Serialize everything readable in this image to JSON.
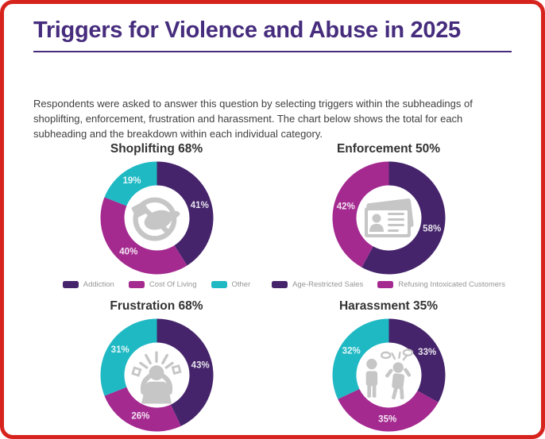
{
  "frame": {
    "border_color": "#d7231e",
    "background": "#ffffff"
  },
  "header": {
    "title": "Triggers for Violence and Abuse in 2025",
    "title_color": "#462c7d"
  },
  "intro": {
    "text": "Respondents were asked to answer this question by selecting triggers within the subheadings of shoplifting, enforcement, frustration and harassment. The chart below shows the total for each subheading and the breakdown within each individual category."
  },
  "palette": {
    "purple": "#45246b",
    "magenta": "#a42a90",
    "teal": "#1fb9c4",
    "segment_label_text": "#ffffff",
    "legend_text": "#969696",
    "chart_title_text": "#333333",
    "icon_gray": "#c6c6c6"
  },
  "chart_data": [
    {
      "type": "donut",
      "title": "Shoplifting 68%",
      "icon": "no-shoplifting-icon",
      "legend_visible": true,
      "legend_position": "bottom",
      "segments": [
        {
          "label": "Addiction",
          "value": 41,
          "color": "purple"
        },
        {
          "label": "Cost Of Living",
          "value": 40,
          "color": "magenta"
        },
        {
          "label": "Other",
          "value": 19,
          "color": "teal"
        }
      ]
    },
    {
      "type": "donut",
      "title": "Enforcement 50%",
      "icon": "id-card-icon",
      "legend_visible": true,
      "legend_position": "bottom",
      "segments": [
        {
          "label": "Age-Restricted Sales",
          "value": 58,
          "color": "purple"
        },
        {
          "label": "Refusing Intoxicated Customers",
          "value": 42,
          "color": "magenta"
        }
      ]
    },
    {
      "type": "donut",
      "title": "Frustration 68%",
      "icon": "frustrated-person-icon",
      "legend_visible": false,
      "segments": [
        {
          "value": 43,
          "color": "purple"
        },
        {
          "value": 26,
          "color": "magenta"
        },
        {
          "value": 31,
          "color": "teal"
        }
      ]
    },
    {
      "type": "donut",
      "title": "Harassment 35%",
      "icon": "two-people-argument-icon",
      "legend_visible": false,
      "segments": [
        {
          "value": 33,
          "color": "purple"
        },
        {
          "value": 35,
          "color": "magenta"
        },
        {
          "value": 32,
          "color": "teal"
        }
      ]
    }
  ]
}
